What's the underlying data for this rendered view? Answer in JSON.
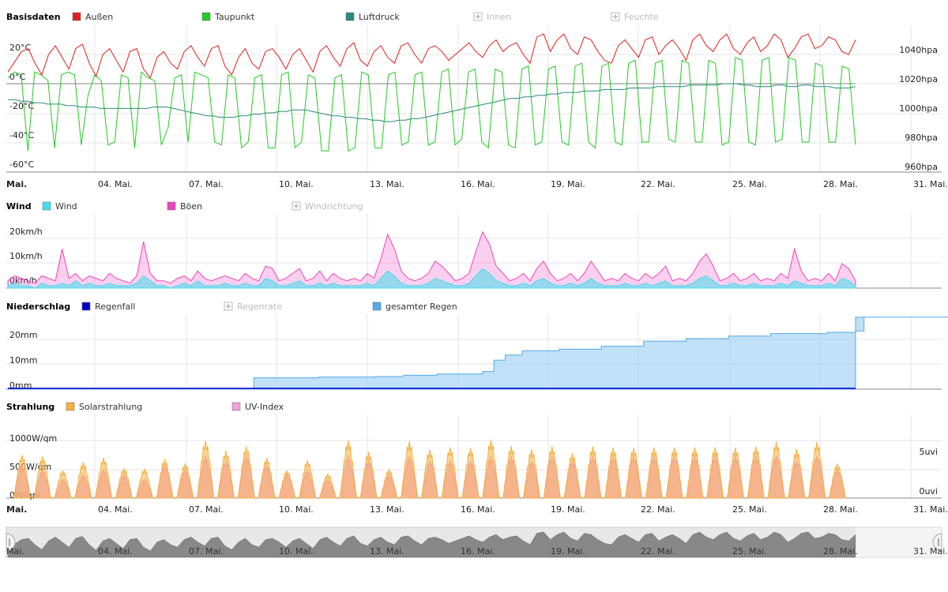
{
  "chart_data": [
    {
      "type": "line",
      "title": "Basisdaten",
      "legend_placement": "top-left",
      "series": [
        {
          "name": "Außen",
          "color": "#e02020",
          "values": [
            8,
            15,
            22,
            24,
            14,
            6,
            20,
            26,
            18,
            10,
            24,
            27,
            14,
            5,
            20,
            24,
            16,
            8,
            22,
            24,
            10,
            4,
            18,
            22,
            14,
            10,
            22,
            26,
            18,
            12,
            24,
            26,
            12,
            6,
            18,
            24,
            14,
            10,
            22,
            24,
            18,
            10,
            20,
            24,
            16,
            8,
            22,
            26,
            18,
            12,
            24,
            28,
            16,
            12,
            22,
            26,
            18,
            14,
            26,
            28,
            20,
            14,
            24,
            26,
            22,
            16,
            20,
            24,
            28,
            22,
            18,
            26,
            30,
            22,
            26,
            28,
            20,
            14,
            32,
            34,
            22,
            30,
            34,
            24,
            20,
            32,
            30,
            22,
            16,
            14,
            26,
            30,
            24,
            18,
            30,
            32,
            20,
            26,
            30,
            24,
            16,
            30,
            34,
            26,
            22,
            30,
            34,
            24,
            20,
            28,
            32,
            22,
            26,
            34,
            30,
            18,
            24,
            32,
            34,
            24,
            26,
            32,
            30,
            22,
            20,
            30
          ]
        },
        {
          "name": "Taupunkt",
          "color": "#22cc22",
          "values": [
            4,
            8,
            6,
            -46,
            8,
            6,
            2,
            -44,
            6,
            8,
            6,
            -42,
            -8,
            6,
            2,
            -42,
            -40,
            6,
            4,
            -44,
            8,
            4,
            2,
            -42,
            -30,
            4,
            6,
            -40,
            8,
            6,
            4,
            -40,
            -42,
            6,
            4,
            -44,
            -40,
            4,
            6,
            -44,
            -44,
            6,
            8,
            -44,
            -40,
            6,
            4,
            -46,
            -46,
            4,
            6,
            -46,
            -44,
            8,
            6,
            -44,
            -44,
            6,
            8,
            -42,
            -40,
            6,
            8,
            -42,
            -40,
            8,
            10,
            -42,
            -38,
            8,
            10,
            -40,
            -44,
            10,
            8,
            -42,
            -44,
            10,
            12,
            -42,
            -40,
            10,
            12,
            -40,
            -42,
            12,
            14,
            -40,
            -44,
            12,
            14,
            -40,
            -42,
            14,
            16,
            -40,
            -40,
            14,
            16,
            -38,
            -40,
            16,
            14,
            -40,
            -40,
            16,
            14,
            -42,
            -40,
            18,
            16,
            -40,
            -42,
            16,
            18,
            -40,
            -38,
            18,
            16,
            -40,
            -40,
            14,
            12,
            -40,
            -40,
            12,
            10,
            -42
          ]
        },
        {
          "name": "Luftdruck",
          "color": "#2a8a80",
          "values": [
            1009,
            1009,
            1008,
            1008,
            1007,
            1007,
            1006,
            1006,
            1006,
            1005,
            1005,
            1004,
            1004,
            1004,
            1003,
            1003,
            1003,
            1003,
            1003,
            1003,
            1003,
            1003,
            1004,
            1004,
            1004,
            1003,
            1002,
            1001,
            1000,
            999,
            998,
            998,
            997,
            997,
            997,
            998,
            998,
            999,
            999,
            1000,
            1000,
            1001,
            1001,
            1002,
            1002,
            1002,
            1001,
            1000,
            999,
            998,
            998,
            997,
            997,
            996,
            996,
            995,
            995,
            994,
            994,
            995,
            995,
            996,
            996,
            997,
            998,
            999,
            1000,
            1001,
            1002,
            1003,
            1004,
            1005,
            1006,
            1007,
            1008,
            1009,
            1010,
            1010,
            1011,
            1011,
            1012,
            1012,
            1013,
            1013,
            1014,
            1014,
            1014,
            1015,
            1015,
            1015,
            1016,
            1016,
            1016,
            1016,
            1017,
            1017,
            1017,
            1017,
            1018,
            1018,
            1018,
            1018,
            1018,
            1019,
            1019,
            1019,
            1019,
            1019,
            1020,
            1020,
            1020,
            1019,
            1019,
            1018,
            1018,
            1018,
            1019,
            1019,
            1018,
            1018,
            1019,
            1019,
            1018,
            1018,
            1018,
            1017,
            1017,
            1017,
            1018
          ]
        },
        {
          "name": "Innen",
          "hidden": true
        },
        {
          "name": "Feuchte",
          "hidden": true
        }
      ],
      "y_left": {
        "ticks": [
          "20°C",
          "0°C",
          "-20°C",
          "-40°C",
          "-60°C"
        ],
        "range": [
          -60,
          40
        ]
      },
      "y_right": {
        "ticks": [
          "1040hpa",
          "1020hpa",
          "1000hpa",
          "980hpa",
          "960hpa"
        ],
        "range": [
          960,
          1060
        ]
      },
      "x_ticks": [
        "Mai.",
        "04. Mai.",
        "07. Mai.",
        "10. Mai.",
        "13. Mai.",
        "16. Mai.",
        "19. Mai.",
        "22. Mai.",
        "25. Mai.",
        "28. Mai.",
        "31. Mai."
      ],
      "grid": true
    },
    {
      "type": "area",
      "title": "Wind",
      "legend_placement": "top-left",
      "series": [
        {
          "name": "Wind",
          "color": "#44ddee",
          "values": [
            1,
            2,
            1,
            1,
            0,
            2,
            1,
            1,
            2,
            1,
            3,
            1,
            2,
            1,
            1,
            2,
            1,
            1,
            1,
            2,
            5,
            3,
            1,
            1,
            0,
            1,
            2,
            1,
            3,
            1,
            1,
            1,
            2,
            1,
            1,
            2,
            1,
            1,
            4,
            3,
            1,
            1,
            2,
            3,
            1,
            1,
            2,
            1,
            2,
            1,
            1,
            1,
            1,
            2,
            1,
            4,
            7,
            5,
            2,
            1,
            1,
            1,
            2,
            4,
            3,
            2,
            1,
            1,
            2,
            5,
            8,
            6,
            3,
            2,
            1,
            1,
            2,
            1,
            3,
            4,
            2,
            1,
            1,
            2,
            1,
            2,
            4,
            2,
            1,
            1,
            1,
            2,
            1,
            1,
            2,
            1,
            2,
            3,
            1,
            1,
            1,
            2,
            4,
            5,
            3,
            1,
            1,
            2,
            1,
            1,
            2,
            1,
            1,
            1,
            2,
            1,
            3,
            2,
            1,
            1,
            1,
            2,
            1,
            4,
            3,
            1
          ]
        },
        {
          "name": "Böen",
          "color": "#ee44bb",
          "values": [
            3,
            5,
            4,
            3,
            2,
            5,
            4,
            3,
            16,
            4,
            6,
            3,
            5,
            4,
            3,
            6,
            4,
            3,
            2,
            5,
            19,
            6,
            3,
            3,
            2,
            4,
            5,
            3,
            7,
            4,
            3,
            4,
            5,
            4,
            3,
            6,
            4,
            3,
            9,
            8,
            3,
            4,
            6,
            8,
            3,
            4,
            7,
            3,
            6,
            4,
            3,
            4,
            3,
            6,
            4,
            12,
            22,
            16,
            7,
            4,
            3,
            4,
            6,
            11,
            9,
            6,
            3,
            4,
            6,
            15,
            23,
            18,
            9,
            6,
            3,
            4,
            6,
            3,
            8,
            11,
            6,
            3,
            4,
            6,
            3,
            6,
            11,
            7,
            3,
            4,
            3,
            6,
            4,
            3,
            6,
            4,
            6,
            9,
            3,
            4,
            3,
            6,
            11,
            14,
            9,
            3,
            4,
            6,
            3,
            4,
            6,
            3,
            4,
            3,
            6,
            4,
            16,
            7,
            3,
            4,
            3,
            6,
            3,
            10,
            8,
            3
          ]
        },
        {
          "name": "Windrichtung",
          "hidden": true
        }
      ],
      "y_left": {
        "ticks": [
          "20km/h",
          "10km/h",
          "0km/h"
        ],
        "range": [
          0,
          30
        ]
      },
      "grid": true
    },
    {
      "type": "area",
      "title": "Niederschlag",
      "legend_placement": "top-left",
      "series": [
        {
          "name": "Regenfall",
          "color": "#0000cc"
        },
        {
          "name": "Regenrate",
          "hidden": true
        },
        {
          "name": "gesamter Regen",
          "color": "#55aaee",
          "steps": [
            [
              1.0,
              0
            ],
            [
              7.0,
              0
            ],
            [
              9.5,
              0.2
            ],
            [
              9.7,
              4.5
            ],
            [
              12.0,
              4.8
            ],
            [
              14.0,
              5.0
            ],
            [
              15.0,
              5.5
            ],
            [
              16.2,
              6.0
            ],
            [
              17.8,
              7.0
            ],
            [
              18.2,
              11.5
            ],
            [
              18.6,
              13.5
            ],
            [
              19.2,
              15.2
            ],
            [
              20.5,
              15.8
            ],
            [
              22.0,
              17.0
            ],
            [
              23.5,
              19.0
            ],
            [
              25.0,
              20.0
            ],
            [
              26.5,
              21.0
            ],
            [
              28.0,
              22.0
            ],
            [
              30.0,
              22.5
            ],
            [
              31.0,
              23.0
            ],
            [
              31.3,
              28.5
            ],
            [
              46.0,
              28.5
            ]
          ]
        }
      ],
      "y_left": {
        "ticks": [
          "20mm",
          "10mm",
          "0mm"
        ],
        "range": [
          0,
          30
        ]
      },
      "grid": true
    },
    {
      "type": "area",
      "title": "Strahlung",
      "legend_placement": "top-left",
      "series": [
        {
          "name": "Solarstrahlung",
          "color": "#f5b040",
          "values": [
            750,
            720,
            480,
            620,
            700,
            520,
            510,
            680,
            600,
            1000,
            820,
            900,
            700,
            480,
            660,
            420,
            1000,
            800,
            500,
            990,
            840,
            880,
            870,
            1010,
            910,
            850,
            900,
            780,
            900,
            880,
            880,
            880,
            880,
            880,
            880,
            880,
            900,
            980,
            850,
            980,
            600
          ]
        },
        {
          "name": "UV-Index",
          "color": "#f3a0e0",
          "values": [
            3.5,
            3.0,
            2.0,
            2.5,
            3.0,
            2.5,
            2.0,
            3.5,
            3.0,
            4.5,
            4.0,
            4.5,
            3.5,
            2.5,
            3.0,
            2.0,
            4.5,
            4.0,
            2.5,
            4.5,
            4.0,
            4.0,
            4.0,
            4.5,
            4.5,
            4.0,
            4.5,
            4.0,
            4.5,
            4.5,
            4.5,
            4.5,
            4.5,
            4.5,
            4.5,
            4.5,
            4.5,
            4.5,
            4.0,
            4.5,
            3.0
          ]
        }
      ],
      "y_left": {
        "ticks": [
          "1000W/qm",
          "500W/qm",
          "0W/qm"
        ],
        "range": [
          0,
          1200
        ]
      },
      "y_right": {
        "ticks": [
          "5uvi",
          "0uvi"
        ],
        "range": [
          0,
          10
        ]
      },
      "x_ticks": [
        "Mai.",
        "04. Mai.",
        "07. Mai.",
        "10. Mai.",
        "13. Mai.",
        "16. Mai.",
        "19. Mai.",
        "22. Mai.",
        "25. Mai.",
        "28. Mai.",
        "31. Mai."
      ],
      "grid": true
    }
  ],
  "navigator": {
    "x_ticks": [
      "Mai.",
      "04. Mai.",
      "07. Mai.",
      "10. Mai.",
      "13. Mai.",
      "16. Mai.",
      "19. Mai.",
      "22. Mai.",
      "25. Mai.",
      "28. Mai.",
      "31. Mai."
    ]
  },
  "colors": {
    "grid": "#e6e6e6",
    "axis": "#c0c0c0",
    "hidden_legend": "#bbbbbb",
    "navigator_bg": "#e8e8e8",
    "navigator_area": "#888888"
  }
}
